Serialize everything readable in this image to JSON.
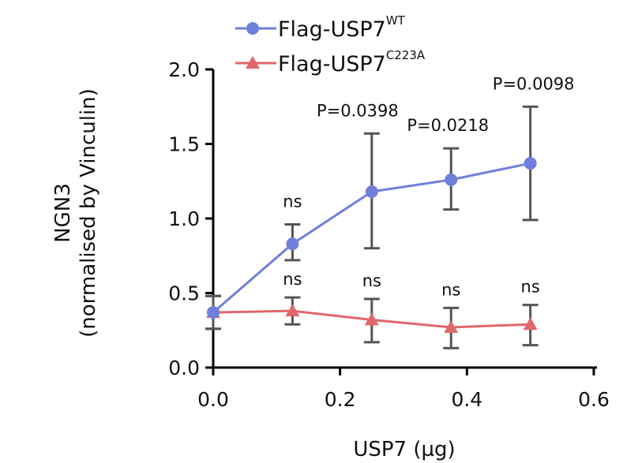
{
  "chart_data": {
    "type": "line",
    "xlabel": "USP7 (µg)",
    "ylabel_line1": "NGN3",
    "ylabel_line2": "(normalised by Vinculin)",
    "xlim": [
      0.0,
      0.6
    ],
    "ylim": [
      0.0,
      2.0
    ],
    "x_ticks": [
      0.0,
      0.2,
      0.4,
      0.6
    ],
    "x_tick_labels": [
      "0.0",
      "0.2",
      "0.4",
      "0.6"
    ],
    "y_ticks": [
      0.0,
      0.5,
      1.0,
      1.5,
      2.0
    ],
    "y_tick_labels": [
      "0.0",
      "0.5",
      "1.0",
      "1.5",
      "2.0"
    ],
    "legend_position": "top",
    "series": [
      {
        "name": "Flag-USP7",
        "name_superscript": "WT",
        "marker": "circle",
        "color": "#6f7fdc",
        "x": [
          0.0,
          0.125,
          0.25,
          0.375,
          0.5
        ],
        "y": [
          0.37,
          0.83,
          1.18,
          1.26,
          1.37
        ],
        "err_low": [
          0.26,
          0.72,
          0.8,
          1.06,
          0.99
        ],
        "err_high": [
          0.48,
          0.96,
          1.57,
          1.47,
          1.75
        ],
        "annotations": [
          "",
          "ns",
          "P=0.0398",
          "P=0.0218",
          "P=0.0098"
        ]
      },
      {
        "name": "Flag-USP7",
        "name_superscript": "C223A",
        "marker": "triangle",
        "color": "#e0676a",
        "x": [
          0.0,
          0.125,
          0.25,
          0.375,
          0.5
        ],
        "y": [
          0.37,
          0.38,
          0.32,
          0.27,
          0.29
        ],
        "err_low": [
          0.26,
          0.29,
          0.17,
          0.13,
          0.15
        ],
        "err_high": [
          0.48,
          0.47,
          0.46,
          0.4,
          0.42
        ],
        "annotations": [
          "",
          "ns",
          "ns",
          "ns",
          "ns"
        ]
      }
    ]
  }
}
